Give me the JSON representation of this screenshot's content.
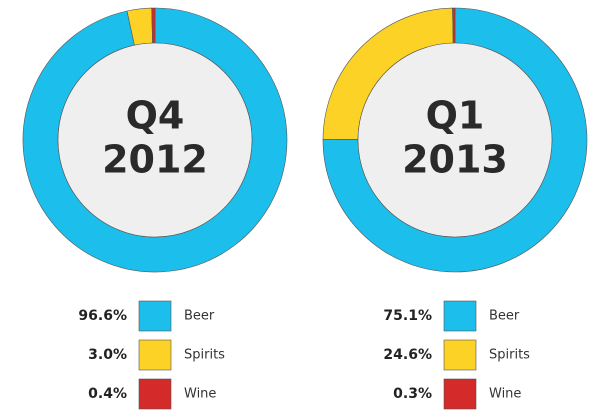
{
  "chart_data": [
    {
      "type": "donut",
      "center_label_lines": [
        "Q4",
        "2012"
      ],
      "categories": [
        "Beer",
        "Spirits",
        "Wine"
      ],
      "values": [
        96.6,
        3.0,
        0.4
      ],
      "value_labels": [
        "96.6%",
        "3.0%",
        "0.4%"
      ],
      "colors": [
        "#1cbeeb",
        "#fcd226",
        "#d42a2a"
      ]
    },
    {
      "type": "donut",
      "center_label_lines": [
        "Q1",
        "2013"
      ],
      "categories": [
        "Beer",
        "Spirits",
        "Wine"
      ],
      "values": [
        75.1,
        24.6,
        0.3
      ],
      "value_labels": [
        "75.1%",
        "24.6%",
        "0.3%"
      ],
      "colors": [
        "#1cbeeb",
        "#fcd226",
        "#d42a2a"
      ]
    }
  ]
}
